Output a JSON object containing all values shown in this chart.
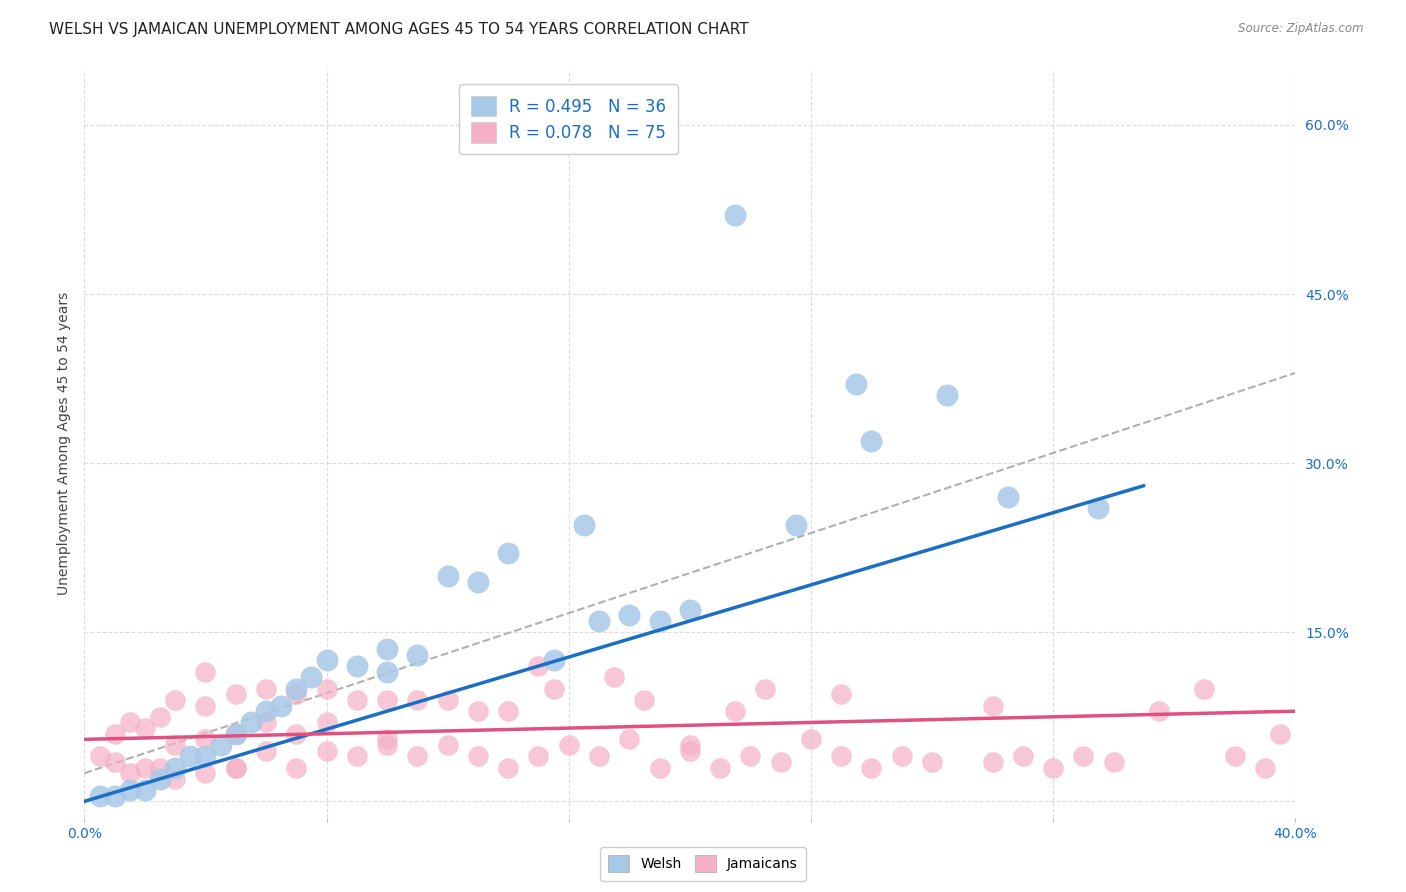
{
  "title": "WELSH VS JAMAICAN UNEMPLOYMENT AMONG AGES 45 TO 54 YEARS CORRELATION CHART",
  "source": "Source: ZipAtlas.com",
  "ylabel": "Unemployment Among Ages 45 to 54 years",
  "xlim": [
    0.0,
    0.4
  ],
  "ylim": [
    -0.015,
    0.65
  ],
  "yticks": [
    0.0,
    0.15,
    0.3,
    0.45,
    0.6
  ],
  "ytick_labels": [
    "",
    "15.0%",
    "30.0%",
    "45.0%",
    "60.0%"
  ],
  "xticks": [
    0.0,
    0.08,
    0.16,
    0.24,
    0.32,
    0.4
  ],
  "welsh_R": 0.495,
  "welsh_N": 36,
  "jamaican_R": 0.078,
  "jamaican_N": 75,
  "welsh_color": "#a8c8e8",
  "jamaican_color": "#f5b0c5",
  "welsh_line_color": "#1a6fc4",
  "jamaican_line_color": "#e05080",
  "dashed_line_color": "#b0b0b0",
  "welsh_x": [
    0.005,
    0.01,
    0.015,
    0.02,
    0.025,
    0.03,
    0.035,
    0.04,
    0.045,
    0.05,
    0.055,
    0.06,
    0.065,
    0.07,
    0.075,
    0.08,
    0.09,
    0.1,
    0.1,
    0.11,
    0.12,
    0.13,
    0.14,
    0.155,
    0.165,
    0.17,
    0.18,
    0.19,
    0.2,
    0.215,
    0.235,
    0.26,
    0.285,
    0.305,
    0.255,
    0.335
  ],
  "welsh_y": [
    0.005,
    0.005,
    0.01,
    0.01,
    0.02,
    0.03,
    0.04,
    0.04,
    0.05,
    0.06,
    0.07,
    0.08,
    0.085,
    0.1,
    0.11,
    0.125,
    0.12,
    0.115,
    0.135,
    0.13,
    0.2,
    0.195,
    0.22,
    0.125,
    0.245,
    0.16,
    0.165,
    0.16,
    0.17,
    0.52,
    0.245,
    0.32,
    0.36,
    0.27,
    0.37,
    0.26
  ],
  "jamaican_x": [
    0.005,
    0.01,
    0.01,
    0.015,
    0.015,
    0.02,
    0.02,
    0.025,
    0.025,
    0.03,
    0.03,
    0.03,
    0.04,
    0.04,
    0.04,
    0.04,
    0.05,
    0.05,
    0.05,
    0.06,
    0.06,
    0.06,
    0.07,
    0.07,
    0.07,
    0.08,
    0.08,
    0.08,
    0.09,
    0.09,
    0.1,
    0.1,
    0.11,
    0.11,
    0.12,
    0.12,
    0.13,
    0.13,
    0.14,
    0.14,
    0.15,
    0.155,
    0.16,
    0.17,
    0.175,
    0.18,
    0.185,
    0.19,
    0.2,
    0.21,
    0.215,
    0.22,
    0.225,
    0.23,
    0.24,
    0.25,
    0.26,
    0.27,
    0.28,
    0.3,
    0.31,
    0.32,
    0.33,
    0.34,
    0.355,
    0.37,
    0.38,
    0.39,
    0.395,
    0.3,
    0.25,
    0.15,
    0.2,
    0.05,
    0.1
  ],
  "jamaican_y": [
    0.04,
    0.035,
    0.06,
    0.025,
    0.07,
    0.03,
    0.065,
    0.03,
    0.075,
    0.02,
    0.05,
    0.09,
    0.025,
    0.055,
    0.085,
    0.115,
    0.03,
    0.06,
    0.095,
    0.045,
    0.07,
    0.1,
    0.03,
    0.06,
    0.095,
    0.045,
    0.07,
    0.1,
    0.04,
    0.09,
    0.05,
    0.09,
    0.04,
    0.09,
    0.05,
    0.09,
    0.04,
    0.08,
    0.03,
    0.08,
    0.04,
    0.1,
    0.05,
    0.04,
    0.11,
    0.055,
    0.09,
    0.03,
    0.05,
    0.03,
    0.08,
    0.04,
    0.1,
    0.035,
    0.055,
    0.04,
    0.03,
    0.04,
    0.035,
    0.035,
    0.04,
    0.03,
    0.04,
    0.035,
    0.08,
    0.1,
    0.04,
    0.03,
    0.06,
    0.085,
    0.095,
    0.12,
    0.045,
    0.03,
    0.055
  ],
  "background_color": "#ffffff",
  "grid_color": "#dddddd",
  "title_fontsize": 11,
  "axis_label_fontsize": 10,
  "tick_fontsize": 10,
  "legend_fontsize": 12,
  "welsh_trend_x": [
    0.0,
    0.35
  ],
  "welsh_trend_y": [
    0.0,
    0.28
  ],
  "jamaican_trend_x": [
    0.0,
    0.4
  ],
  "jamaican_trend_y": [
    0.055,
    0.08
  ],
  "dashed_trend_x": [
    0.0,
    0.4
  ],
  "dashed_trend_y": [
    0.025,
    0.38
  ]
}
